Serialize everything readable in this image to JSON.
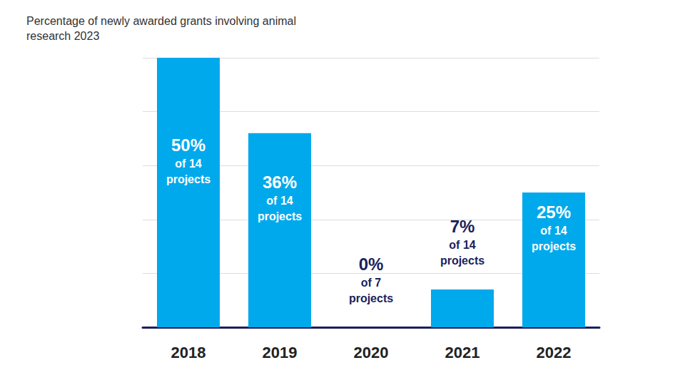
{
  "chart_data": {
    "type": "bar",
    "title": "Percentage of newly awarded grants involving animal research 2023",
    "categories": [
      "2018",
      "2019",
      "2020",
      "2021",
      "2022"
    ],
    "values": [
      50,
      36,
      0,
      7,
      25
    ],
    "value_labels": [
      "50%",
      "36%",
      "0%",
      "7%",
      "25%"
    ],
    "label_notes": [
      "of 14 projects",
      "of 14 projects",
      "of 7 projects",
      "of 14 projects",
      "of 14 projects"
    ],
    "color": "#00a9ec",
    "ylim": [
      0,
      50
    ],
    "yticks": [
      0,
      10,
      20,
      30,
      40,
      50
    ],
    "grid": true,
    "data_labels": true,
    "tick_labels": "x"
  }
}
